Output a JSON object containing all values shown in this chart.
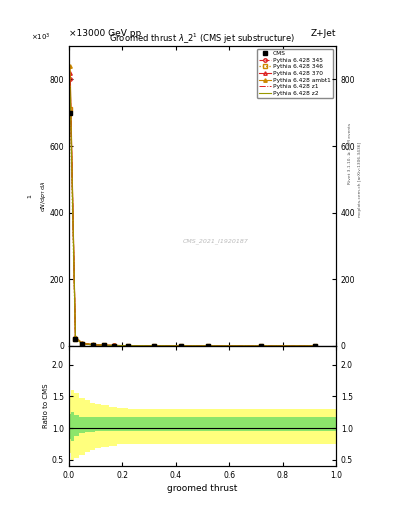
{
  "title_left": "×13000 GeV pp",
  "title_right": "Z+Jet",
  "plot_title": "Groomed thrust λ_2¹ (CMS jet substructure)",
  "xlabel": "groomed thrust",
  "ylabel_main_line1": "mathrm d²N",
  "ylabel_main_line2": "mathrm d p_T mathrm d lambda",
  "ylabel_ratio": "Ratio to CMS",
  "watermark": "CMS_2021_I1920187",
  "rivet_text": "Rivet 3.1.10, ≥ 2.6M events",
  "mcplots_text": "mcplots.cern.ch [arXiv:1306.3436]",
  "legend_entries": [
    "CMS",
    "Pythia 6.428 345",
    "Pythia 6.428 346",
    "Pythia 6.428 370",
    "Pythia 6.428 ambt1",
    "Pythia 6.428 z1",
    "Pythia 6.428 z2"
  ],
  "ylim_main": [
    0,
    900
  ],
  "ylim_ratio": [
    0.4,
    2.3
  ],
  "ytick_main": [
    0,
    200,
    400,
    600,
    800
  ],
  "ytick_ratio": [
    0.5,
    1.0,
    1.5,
    2.0
  ],
  "xlim": [
    0,
    1
  ],
  "colors": {
    "345": "#dd2222",
    "346": "#cc8800",
    "370": "#dd2222",
    "ambt1": "#cc8800",
    "z1": "#dd2222",
    "z2": "#999900"
  },
  "x_lines": [
    0.005,
    0.025,
    0.05,
    0.09,
    0.13,
    0.17,
    0.22,
    0.32,
    0.42,
    0.52,
    0.72,
    0.92
  ],
  "y_345": [
    800,
    24,
    7,
    3.5,
    2.2,
    1.4,
    0.9,
    0.6,
    0.35,
    0.28,
    0.09,
    0.04
  ],
  "y_346": [
    710,
    21,
    6.5,
    3.0,
    1.9,
    1.1,
    0.75,
    0.55,
    0.3,
    0.22,
    0.08,
    0.035
  ],
  "y_370": [
    820,
    25,
    8,
    4.0,
    2.5,
    1.5,
    1.0,
    0.7,
    0.4,
    0.3,
    0.1,
    0.045
  ],
  "y_ambt1": [
    840,
    27,
    9,
    4.5,
    2.8,
    1.7,
    1.1,
    0.75,
    0.45,
    0.33,
    0.11,
    0.05
  ],
  "y_z1": [
    800,
    23,
    7.5,
    3.8,
    2.4,
    1.5,
    1.0,
    0.68,
    0.38,
    0.27,
    0.09,
    0.04
  ],
  "y_z2": [
    775,
    22,
    7,
    3.5,
    2.2,
    1.4,
    0.9,
    0.62,
    0.36,
    0.26,
    0.088,
    0.038
  ],
  "cms_x": [
    0.005,
    0.025,
    0.05,
    0.09,
    0.13,
    0.17,
    0.22,
    0.32,
    0.42,
    0.52,
    0.72,
    0.92
  ],
  "cms_y": [
    700,
    20,
    6,
    3.0,
    1.8,
    1.2,
    0.8,
    0.55,
    0.32,
    0.24,
    0.085,
    0.038
  ],
  "band_x": [
    0.0,
    0.01,
    0.02,
    0.04,
    0.06,
    0.08,
    0.1,
    0.12,
    0.15,
    0.18,
    0.22,
    0.3,
    0.4,
    0.5,
    0.6,
    0.7,
    0.8,
    0.9,
    1.0
  ],
  "green_lo": [
    0.82,
    0.8,
    0.88,
    0.92,
    0.94,
    0.94,
    0.95,
    0.95,
    0.95,
    0.95,
    0.95,
    0.95,
    0.95,
    0.95,
    0.95,
    0.95,
    0.95,
    0.95,
    0.95
  ],
  "green_hi": [
    1.22,
    1.25,
    1.2,
    1.18,
    1.17,
    1.17,
    1.17,
    1.17,
    1.17,
    1.17,
    1.17,
    1.17,
    1.17,
    1.17,
    1.17,
    1.17,
    1.17,
    1.17,
    1.17
  ],
  "yellow_lo": [
    0.6,
    0.5,
    0.52,
    0.58,
    0.62,
    0.65,
    0.68,
    0.7,
    0.72,
    0.74,
    0.75,
    0.75,
    0.75,
    0.75,
    0.75,
    0.75,
    0.75,
    0.75,
    0.75
  ],
  "yellow_hi": [
    1.5,
    1.6,
    1.55,
    1.48,
    1.44,
    1.4,
    1.38,
    1.36,
    1.34,
    1.32,
    1.3,
    1.3,
    1.3,
    1.3,
    1.3,
    1.3,
    1.3,
    1.3,
    1.3
  ]
}
